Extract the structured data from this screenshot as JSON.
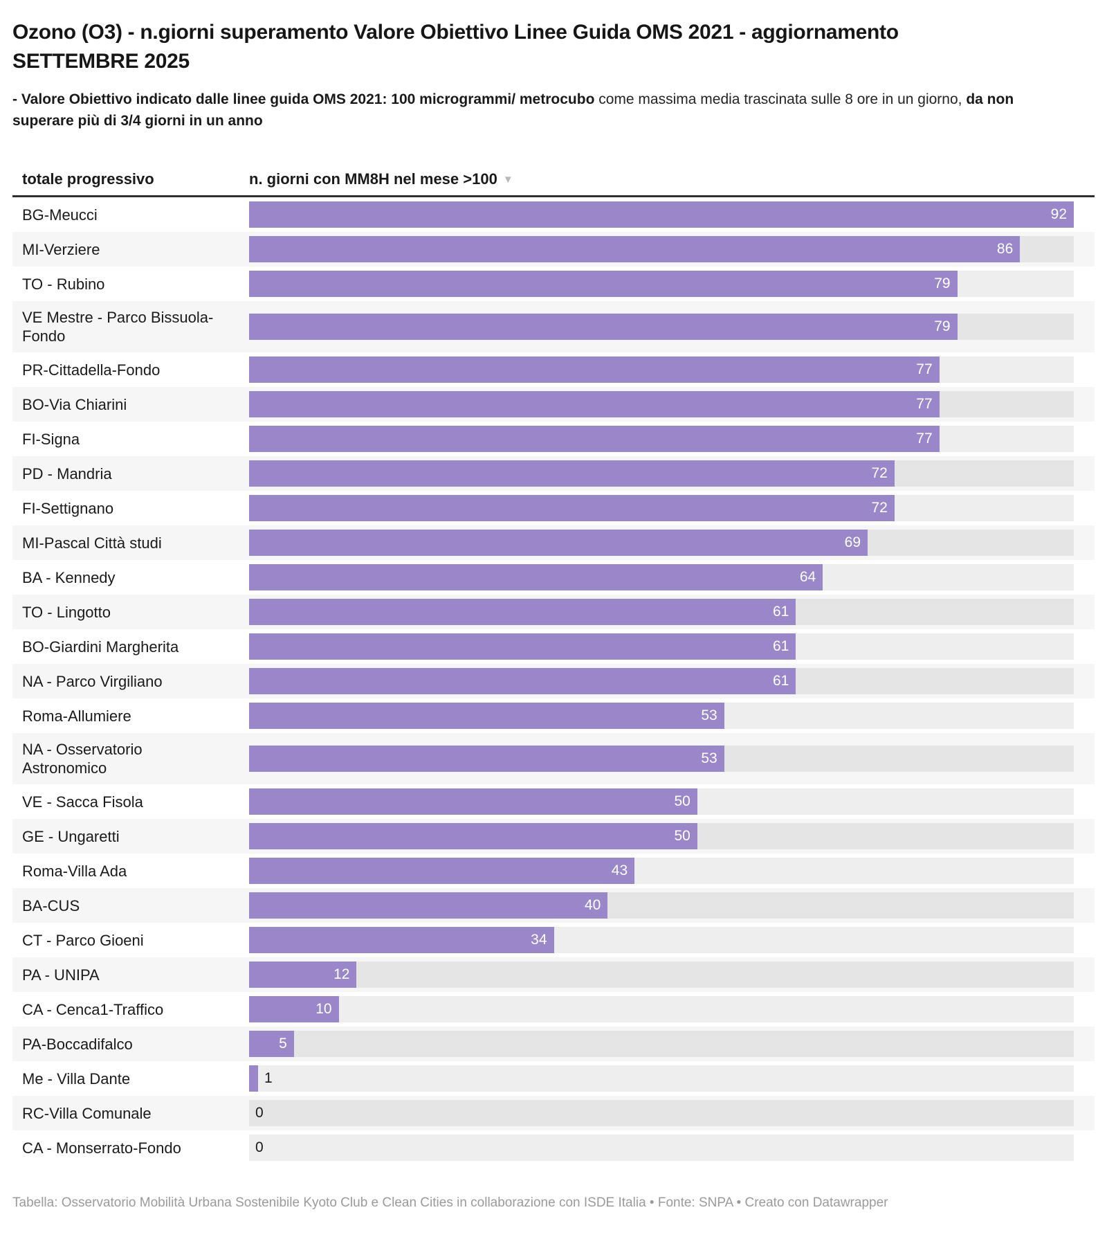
{
  "header": {
    "title": "Ozono (O3) - n.giorni superamento Valore Obiettivo Linee Guida OMS 2021 - aggiornamento SETTEMBRE 2025",
    "subtitle_bold_1": "- Valore Obiettivo indicato dalle linee guida OMS 2021: 100 microgrammi/ metrocubo",
    "subtitle_regular": " come massima media trascinata sulle 8 ore in un giorno, ",
    "subtitle_bold_2": "da non superare più di 3/4 giorni in un anno"
  },
  "table_header": {
    "col_station": "totale progressivo",
    "col_value": "n. giorni con MM8H nel mese >100",
    "sort_icon": "▼"
  },
  "chart_data": {
    "type": "bar",
    "orientation": "horizontal",
    "title": "Ozono (O3) - n.giorni superamento Valore Obiettivo Linee Guida OMS 2021 - aggiornamento SETTEMBRE 2025",
    "value_column_label": "n. giorni con MM8H nel mese >100",
    "category_column_label": "totale progressivo",
    "xlim": [
      0,
      92
    ],
    "max_value": 92,
    "bar_color": "#9a87c9",
    "track_color": "#ebebeb",
    "zebra_color": "#f6f6f6",
    "categories": [
      "BG-Meucci",
      "MI-Verziere",
      "TO - Rubino",
      "VE Mestre - Parco Bissuola-Fondo",
      "PR-Cittadella-Fondo",
      "BO-Via Chiarini",
      "FI-Signa",
      "PD - Mandria",
      "FI-Settignano",
      "MI-Pascal Città studi",
      "BA - Kennedy",
      "TO - Lingotto",
      "BO-Giardini Margherita",
      "NA - Parco Virgiliano",
      "Roma-Allumiere",
      "NA - Osservatorio Astronomico",
      "VE - Sacca Fisola",
      "GE - Ungaretti",
      "Roma-Villa Ada",
      "BA-CUS",
      "CT - Parco Gioeni",
      "PA - UNIPA",
      "CA - Cenca1-Traffico",
      "PA-Boccadifalco",
      "Me - Villa Dante",
      "RC-Villa Comunale",
      "CA - Monserrato-Fondo"
    ],
    "values": [
      92,
      86,
      79,
      79,
      77,
      77,
      77,
      72,
      72,
      69,
      64,
      61,
      61,
      61,
      53,
      53,
      50,
      50,
      43,
      40,
      34,
      12,
      10,
      5,
      1,
      0,
      0
    ]
  },
  "footer": {
    "credit": "Tabella: Osservatorio Mobilità Urbana Sostenibile Kyoto Club e Clean Cities in collaborazione con ISDE Italia • Fonte: SNPA • Creato con Datawrapper"
  }
}
